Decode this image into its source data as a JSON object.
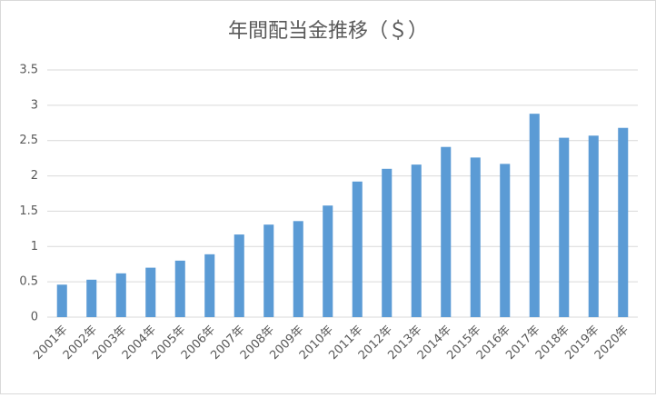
{
  "chart_data": {
    "type": "bar",
    "title": "年間配当金推移（＄）",
    "categories": [
      "2001年",
      "2002年",
      "2003年",
      "2004年",
      "2005年",
      "2006年",
      "2007年",
      "2008年",
      "2009年",
      "2010年",
      "2011年",
      "2012年",
      "2013年",
      "2014年",
      "2015年",
      "2016年",
      "2017年",
      "2018年",
      "2019年",
      "2020年"
    ],
    "values": [
      0.46,
      0.53,
      0.62,
      0.7,
      0.8,
      0.89,
      1.17,
      1.31,
      1.36,
      1.58,
      1.92,
      2.1,
      2.16,
      2.41,
      2.26,
      2.17,
      2.88,
      2.54,
      2.57,
      2.68
    ],
    "color": "#5b9bd5",
    "ylim": [
      0,
      3.5
    ],
    "yticks": [
      0,
      0.5,
      1,
      1.5,
      2,
      2.5,
      3,
      3.5
    ],
    "grid": true
  }
}
